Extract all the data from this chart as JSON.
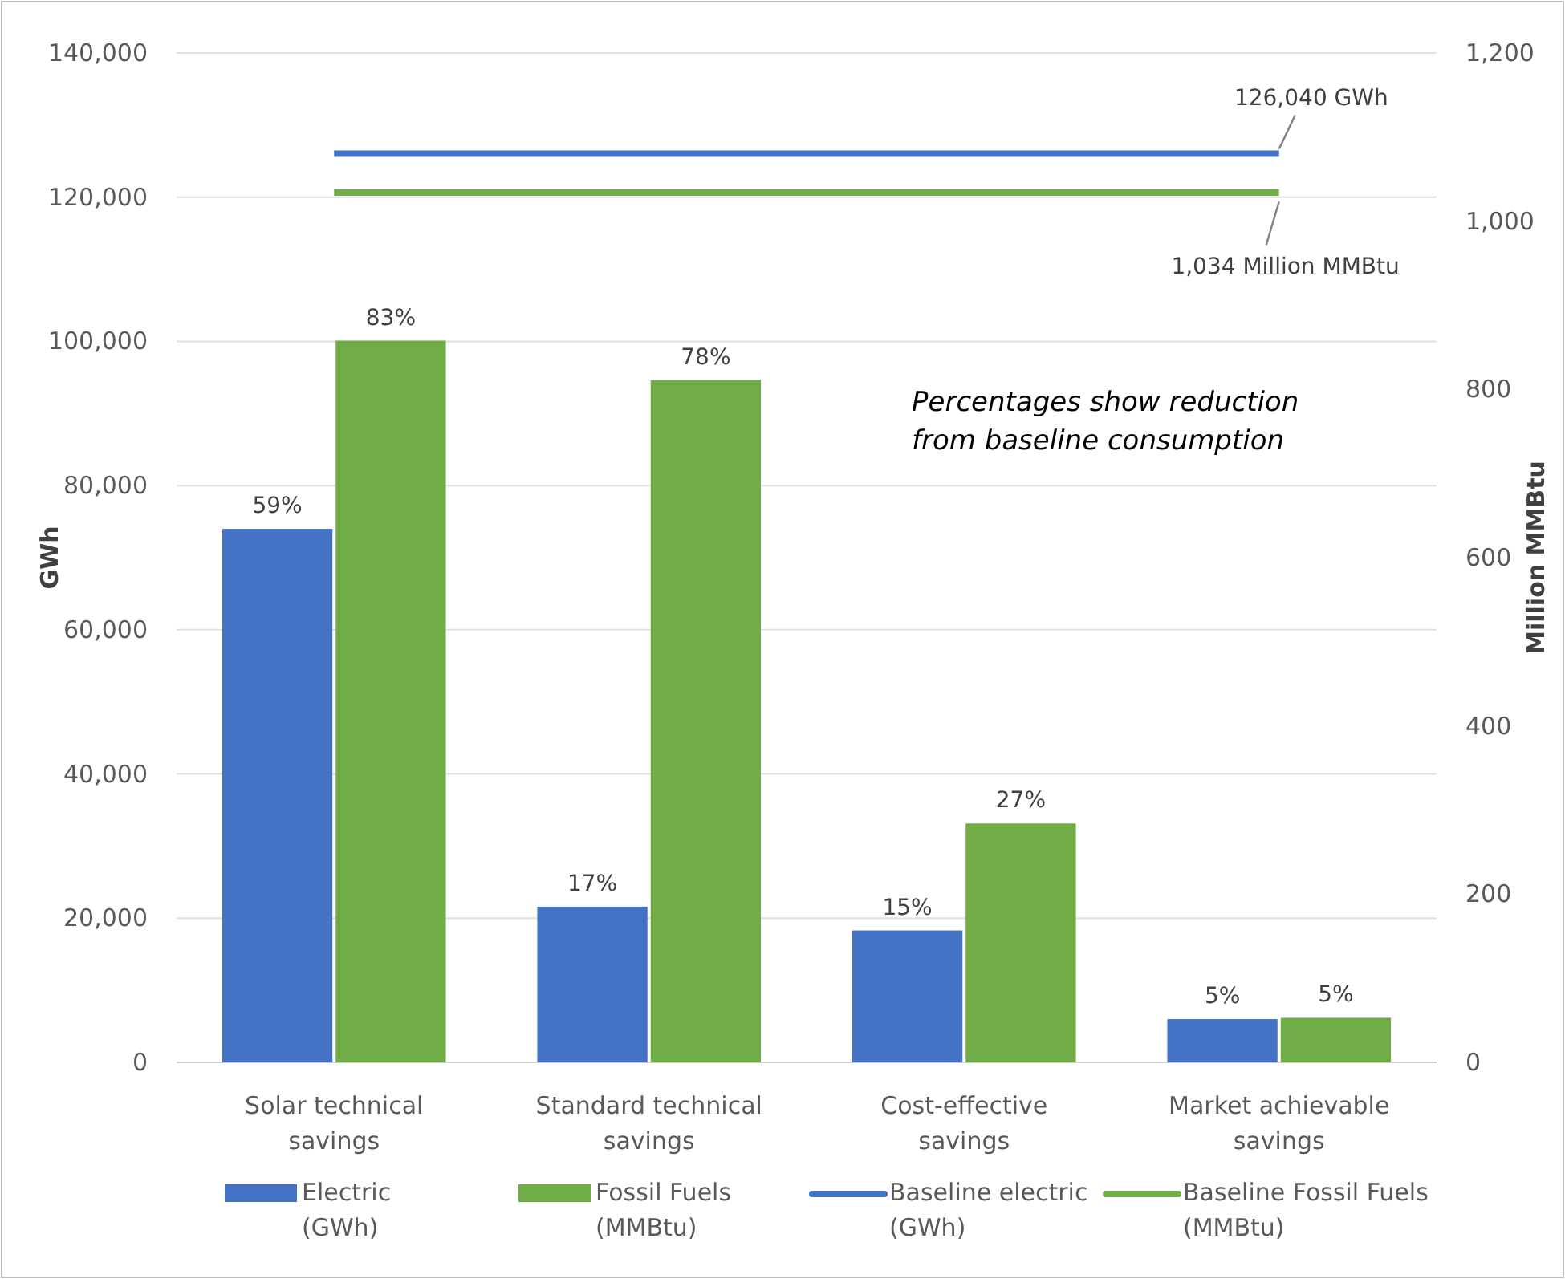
{
  "chart_data": {
    "type": "bar",
    "ylabel": "GWh",
    "y2label": "Million MMBtu",
    "categories": [
      "Solar technical savings",
      "Standard technical savings",
      "Cost-effective savings",
      "Market achievable savings"
    ],
    "series": [
      {
        "name": "Electric (GWh)",
        "color": "#4472c4",
        "values": [
          74000,
          21600,
          18300,
          6000
        ]
      },
      {
        "name": "Fossil Fuels (MMBtu)",
        "color": "#70ad47",
        "axis": "y2",
        "values": [
          858,
          811,
          284,
          53
        ]
      },
      {
        "name": "Baseline electric (GWh)",
        "type": "line",
        "color": "#4472c4",
        "values": [
          126040,
          126040,
          126040,
          126040
        ]
      },
      {
        "name": "Baseline Fossil Fuels (MMBtu)",
        "type": "line",
        "color": "#70ad47",
        "axis": "y2",
        "values": [
          1034,
          1034,
          1034,
          1034
        ]
      }
    ],
    "ylim": [
      0,
      140000
    ],
    "yticks": [
      {
        "value": 0,
        "label": "0"
      },
      {
        "value": 20000,
        "label": "20,000"
      },
      {
        "value": 40000,
        "label": "40,000"
      },
      {
        "value": 60000,
        "label": "60,000"
      },
      {
        "value": 80000,
        "label": "80,000"
      },
      {
        "value": 100000,
        "label": "100,000"
      },
      {
        "value": 120000,
        "label": "120,000"
      },
      {
        "value": 140000,
        "label": "140,000"
      }
    ],
    "y2lim": [
      0,
      1200
    ],
    "y2ticks": [
      0,
      200,
      400,
      600,
      800,
      {
        "value": 1000,
        "label": "1,000"
      },
      {
        "value": 1200,
        "label": "1,200"
      }
    ],
    "grid": "y",
    "legend": "bottom",
    "marker": "none",
    "line_style": "solid",
    "annotations": [
      {
        "text": "126,040 GWh",
        "x": "Market achievable savings",
        "y": 126040
      },
      "1,034 Million MMBtu",
      "Percentages show reduction from baseline consumption",
      {
        "text": "59%",
        "x": "Solar technical savings",
        "y": 74000
      },
      {
        "text": "17%",
        "x": "Standard technical savings",
        "y": 21600
      },
      {
        "text": "15%",
        "x": "Cost-effective savings",
        "y": 18300
      },
      {
        "text": "5%",
        "x": "Market achievable savings",
        "y": 6000
      },
      "83%",
      "78%",
      "27%",
      "5%"
    ]
  }
}
